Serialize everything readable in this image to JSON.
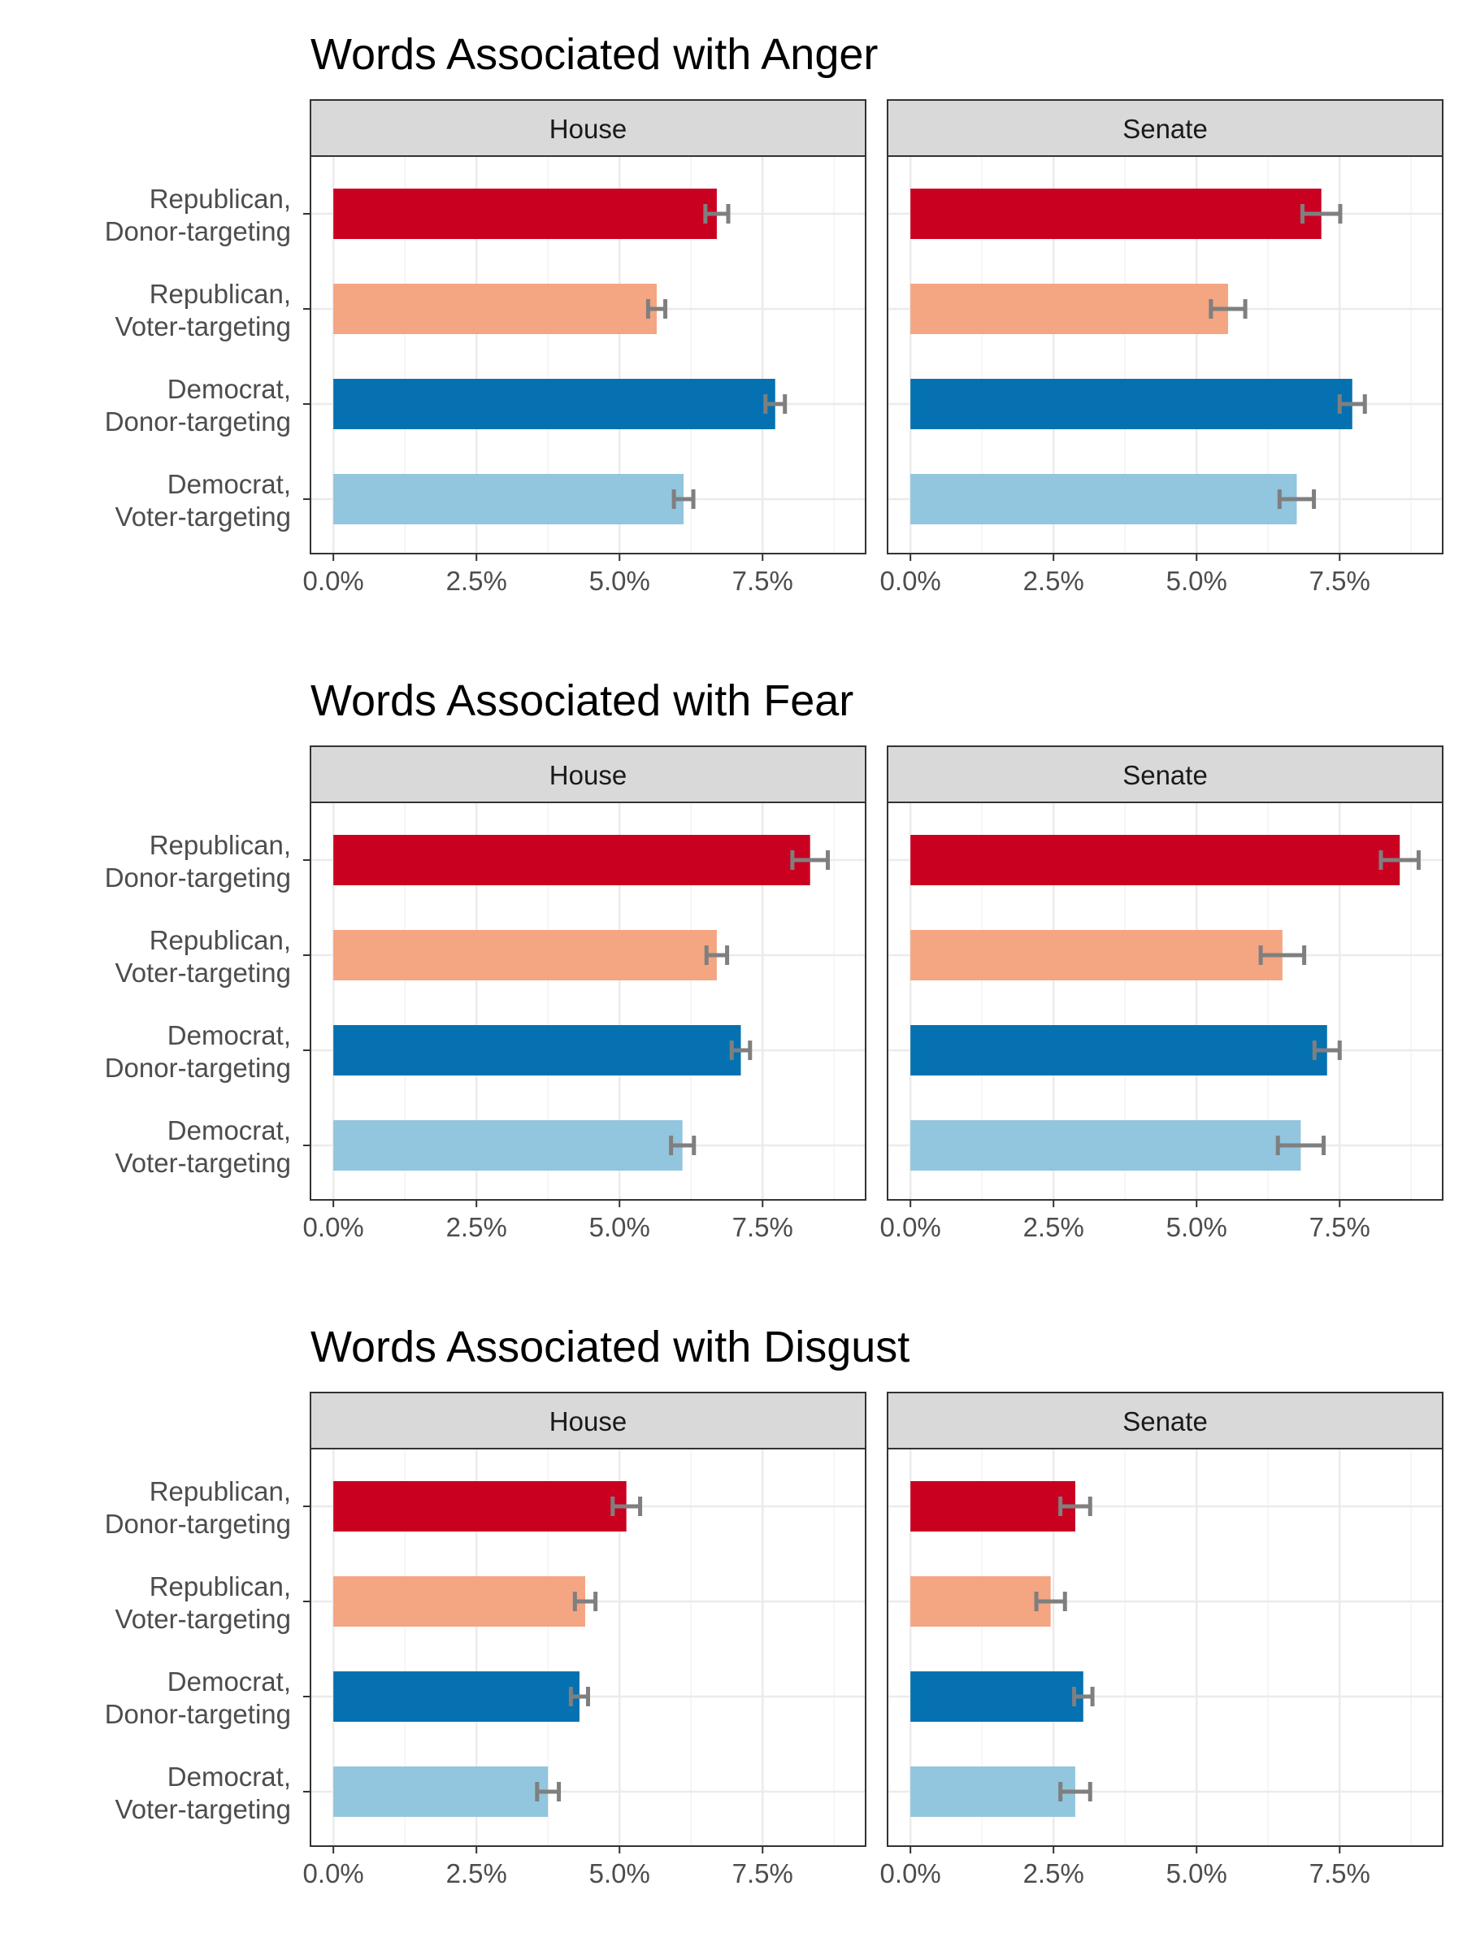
{
  "chart_data": [
    {
      "type": "bar",
      "orientation": "horizontal",
      "title": "Words Associated with Anger",
      "categories": [
        "Republican,\nDonor-targeting",
        "Republican,\nVoter-targeting",
        "Democrat,\nDonor-targeting",
        "Democrat,\nVoter-targeting"
      ],
      "colors": [
        "#ca0020",
        "#f4a582",
        "#0571b0",
        "#92c5de"
      ],
      "xlim": [
        -0.4,
        9.3
      ],
      "xticks": [
        "0.0%",
        "2.5%",
        "5.0%",
        "7.5%"
      ],
      "grid": true,
      "panels": [
        {
          "name": "House",
          "values": [
            6.7,
            5.65,
            7.72,
            6.12
          ],
          "err_low": [
            6.5,
            5.5,
            7.55,
            5.95
          ],
          "err_high": [
            6.9,
            5.8,
            7.89,
            6.29
          ]
        },
        {
          "name": "Senate",
          "values": [
            7.18,
            5.55,
            7.72,
            6.75
          ],
          "err_low": [
            6.85,
            5.25,
            7.5,
            6.45
          ],
          "err_high": [
            7.51,
            5.85,
            7.94,
            7.05
          ]
        }
      ]
    },
    {
      "type": "bar",
      "orientation": "horizontal",
      "title": "Words Associated with Fear",
      "categories": [
        "Republican,\nDonor-targeting",
        "Republican,\nVoter-targeting",
        "Democrat,\nDonor-targeting",
        "Democrat,\nVoter-targeting"
      ],
      "colors": [
        "#ca0020",
        "#f4a582",
        "#0571b0",
        "#92c5de"
      ],
      "xlim": [
        -0.4,
        9.3
      ],
      "xticks": [
        "0.0%",
        "2.5%",
        "5.0%",
        "7.5%"
      ],
      "grid": true,
      "panels": [
        {
          "name": "House",
          "values": [
            8.33,
            6.7,
            7.12,
            6.1
          ],
          "err_low": [
            8.02,
            6.52,
            6.96,
            5.9
          ],
          "err_high": [
            8.64,
            6.88,
            7.28,
            6.3
          ]
        },
        {
          "name": "Senate",
          "values": [
            8.55,
            6.5,
            7.28,
            6.82
          ],
          "err_low": [
            8.22,
            6.12,
            7.06,
            6.42
          ],
          "err_high": [
            8.88,
            6.88,
            7.5,
            7.22
          ]
        }
      ]
    },
    {
      "type": "bar",
      "orientation": "horizontal",
      "title": "Words Associated with Disgust",
      "categories": [
        "Republican,\nDonor-targeting",
        "Republican,\nVoter-targeting",
        "Democrat,\nDonor-targeting",
        "Democrat,\nVoter-targeting"
      ],
      "colors": [
        "#ca0020",
        "#f4a582",
        "#0571b0",
        "#92c5de"
      ],
      "xlim": [
        -0.4,
        9.3
      ],
      "xticks": [
        "0.0%",
        "2.5%",
        "5.0%",
        "7.5%"
      ],
      "grid": true,
      "panels": [
        {
          "name": "House",
          "values": [
            5.12,
            4.4,
            4.3,
            3.75
          ],
          "err_low": [
            4.88,
            4.22,
            4.15,
            3.56
          ],
          "err_high": [
            5.36,
            4.58,
            4.45,
            3.94
          ]
        },
        {
          "name": "Senate",
          "values": [
            2.88,
            2.45,
            3.02,
            2.88
          ],
          "err_low": [
            2.62,
            2.2,
            2.86,
            2.62
          ],
          "err_high": [
            3.14,
            2.7,
            3.18,
            3.14
          ]
        }
      ]
    }
  ]
}
